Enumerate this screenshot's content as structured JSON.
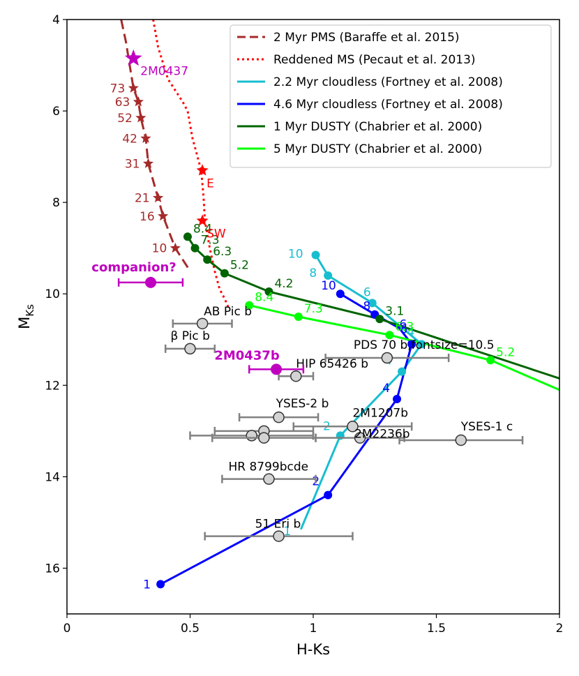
{
  "chart_data": {
    "type": "scatter",
    "xlabel": "H-Ks",
    "ylabel": "M",
    "ylabel_sub": "Ks",
    "xlim": [
      0,
      2
    ],
    "ylim": [
      17,
      4
    ],
    "xticks": [
      0,
      0.5,
      1,
      1.5,
      2
    ],
    "xtick_labels": [
      "0",
      "0.5",
      "1",
      "1.5",
      "2"
    ],
    "yticks": [
      4,
      6,
      8,
      10,
      12,
      14,
      16
    ],
    "ytick_labels": [
      "4",
      "6",
      "8",
      "10",
      "12",
      "14",
      "16"
    ],
    "legend": {
      "position": "top-right",
      "entries": [
        {
          "label": "2 Myr PMS (Baraffe et al. 2015)",
          "color": "#a52a2a",
          "style": "dashed"
        },
        {
          "label": "Reddened MS (Pecaut et al. 2013)",
          "color": "#ff0000",
          "style": "dotted"
        },
        {
          "label": "2.2 Myr cloudless (Fortney et al. 2008)",
          "color": "#17becf",
          "style": "solid"
        },
        {
          "label": "4.6 Myr cloudless (Fortney et al. 2008)",
          "color": "#0000ff",
          "style": "solid"
        },
        {
          "label": "1 Myr DUSTY (Chabrier et al. 2000)",
          "color": "#006400",
          "style": "solid"
        },
        {
          "label": "5 Myr DUSTY (Chabrier et al. 2000)",
          "color": "#00ff00",
          "style": "solid"
        }
      ]
    },
    "series": [
      {
        "name": "2 Myr PMS",
        "color": "#a52a2a",
        "style": "dashed",
        "x": [
          0.22,
          0.24,
          0.25,
          0.27,
          0.29,
          0.3,
          0.32,
          0.33,
          0.37,
          0.39,
          0.44,
          0.5
        ],
        "y": [
          4.0,
          4.5,
          4.85,
          5.5,
          5.8,
          6.15,
          6.6,
          7.15,
          7.9,
          8.3,
          9.0,
          9.5
        ]
      },
      {
        "name": "Reddened MS",
        "color": "#ff0000",
        "style": "dotted",
        "x": [
          0.35,
          0.37,
          0.41,
          0.47,
          0.49,
          0.51,
          0.53,
          0.545,
          0.555,
          0.56,
          0.58,
          0.6,
          0.62,
          0.64,
          0.66
        ],
        "y": [
          4.0,
          4.6,
          5.3,
          5.8,
          6.0,
          6.6,
          7.0,
          7.3,
          7.9,
          8.4,
          9.0,
          9.5,
          9.9,
          10.1,
          10.35
        ]
      },
      {
        "name": "2.2 Myr cloudless",
        "color": "#17becf",
        "style": "solid",
        "x": [
          0.95,
          1.11,
          1.36,
          1.44,
          1.24,
          1.06,
          1.01
        ],
        "y": [
          15.15,
          13.1,
          11.7,
          11.1,
          10.2,
          9.6,
          9.15
        ],
        "point_labels": [
          "1",
          "2",
          "4",
          "4",
          "6",
          "8",
          "10"
        ],
        "point_flags": [
          false,
          true,
          true,
          true,
          true,
          true,
          true
        ]
      },
      {
        "name": "4.6 Myr cloudless",
        "color": "#0000ff",
        "style": "solid",
        "x": [
          0.38,
          1.06,
          1.34,
          1.4,
          1.35,
          1.25,
          1.11
        ],
        "y": [
          16.35,
          14.4,
          12.3,
          11.1,
          10.75,
          10.45,
          10.0
        ],
        "point_labels": [
          "1",
          "2",
          "4",
          "6",
          "6",
          "8",
          "10"
        ],
        "point_flags": [
          true,
          true,
          true,
          true,
          false,
          true,
          true
        ]
      },
      {
        "name": "1 Myr DUSTY",
        "color": "#006400",
        "style": "solid",
        "x": [
          0.49,
          0.52,
          0.57,
          0.64,
          0.82,
          1.27,
          2.0
        ],
        "y": [
          8.75,
          9.0,
          9.25,
          9.55,
          9.95,
          10.55,
          11.85
        ],
        "point_labels": [
          "8.4",
          "7.3",
          "6.3",
          "5.2",
          "4.2",
          "3.1",
          ""
        ],
        "point_flags": [
          true,
          true,
          true,
          true,
          true,
          true,
          false
        ]
      },
      {
        "name": "5 Myr DUSTY",
        "color": "#00ff00",
        "style": "solid",
        "x": [
          0.74,
          0.94,
          1.31,
          1.72,
          2.0
        ],
        "y": [
          10.25,
          10.5,
          10.9,
          11.45,
          12.1
        ],
        "point_labels": [
          "8.4",
          "7.3",
          "6.3",
          "5.2",
          ""
        ],
        "point_flags": [
          true,
          true,
          true,
          true,
          false
        ]
      }
    ],
    "pms_points": [
      {
        "label": "73",
        "x": 0.27,
        "y": 5.5
      },
      {
        "label": "63",
        "x": 0.29,
        "y": 5.8
      },
      {
        "label": "52",
        "x": 0.3,
        "y": 6.15
      },
      {
        "label": "42",
        "x": 0.32,
        "y": 6.6
      },
      {
        "label": "31",
        "x": 0.33,
        "y": 7.15
      },
      {
        "label": "21",
        "x": 0.37,
        "y": 7.9
      },
      {
        "label": "16",
        "x": 0.39,
        "y": 8.3
      },
      {
        "label": "10",
        "x": 0.44,
        "y": 9.0
      }
    ],
    "ms_points": [
      {
        "label": "E",
        "x": 0.55,
        "y": 7.3
      },
      {
        "label": "SW",
        "x": 0.55,
        "y": 8.4
      }
    ],
    "host": {
      "label": "2M0437",
      "x": 0.27,
      "y": 4.85,
      "color": "#c000c0"
    },
    "companions": [
      {
        "label": "companion?",
        "x": 0.34,
        "y": 9.75,
        "xerr": 0.13,
        "color": "#c000c0",
        "bold": true
      },
      {
        "label": "2M0437b",
        "x": 0.85,
        "y": 11.65,
        "xerr": 0.11,
        "color": "#c000c0",
        "bold": true
      }
    ],
    "known_objects": [
      {
        "label": "AB Pic b",
        "x": 0.55,
        "y": 10.65,
        "xerr": 0.12
      },
      {
        "label": "β Pic b",
        "x": 0.5,
        "y": 11.2,
        "xerr": 0.1
      },
      {
        "label": "HIP 65426 b",
        "x": 0.93,
        "y": 11.8,
        "xerr": 0.07
      },
      {
        "label": "PDS 70 b,fontsize=10.5",
        "x": 1.3,
        "y": 11.4,
        "xerr": 0.25
      },
      {
        "label": "YSES-2 b",
        "x": 0.86,
        "y": 12.7,
        "xerr": 0.16
      },
      {
        "label": "2M1207b",
        "x": 1.16,
        "y": 12.9,
        "xerr": 0.24
      },
      {
        "label": "2M2236b",
        "x": 1.19,
        "y": 13.15,
        "xerr": 0.18
      },
      {
        "label": "",
        "x": 0.8,
        "y": 13.0,
        "xerr": 0.2
      },
      {
        "label": "",
        "x": 0.75,
        "y": 13.1,
        "xerr": 0.25
      },
      {
        "label": "",
        "x": 0.8,
        "y": 13.15,
        "xerr": 0.21
      },
      {
        "label": "YSES-1 c",
        "x": 1.6,
        "y": 13.2,
        "xerr": 0.25
      },
      {
        "label": "HR 8799bcde",
        "x": 0.82,
        "y": 14.05,
        "xerr": 0.19
      },
      {
        "label": "51 Eri b",
        "x": 0.86,
        "y": 15.3,
        "xerr": 0.3
      }
    ]
  }
}
